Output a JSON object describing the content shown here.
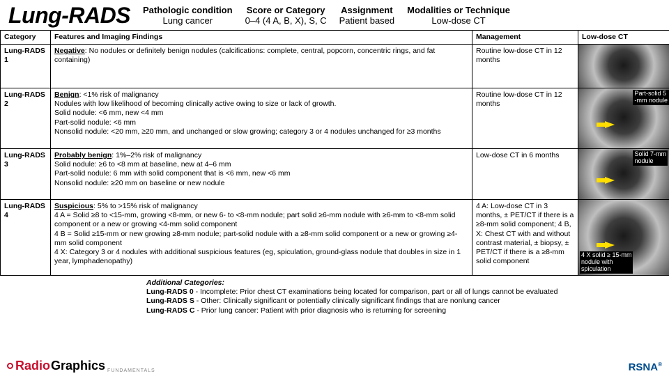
{
  "title": "Lung-RADS",
  "meta": [
    {
      "label": "Pathologic condition",
      "value": "Lung cancer"
    },
    {
      "label": "Score or Category",
      "value": "0–4 (4 A, B, X), S, C"
    },
    {
      "label": "Assignment",
      "value": "Patient based"
    },
    {
      "label": "Modalities or Technique",
      "value": "Low-dose CT"
    }
  ],
  "columns": {
    "category": "Category",
    "features": "Features and Imaging Findings",
    "management": "Management",
    "image": "Low-dose CT"
  },
  "rows": [
    {
      "category": "Lung-RADS 1",
      "featLead": "Negative",
      "featRest": ": No nodules or definitely benign nodules (calcifications: complete, central, popcorn, concentric rings, and fat containing)",
      "management": "Routine low-dose CT in 12 months",
      "annot": null
    },
    {
      "category": "Lung-RADS 2",
      "featLead": "Benign",
      "featRest": ": <1% risk of malignancy\nNodules with low likelihood of becoming clinically active owing to size or lack of growth.\nSolid nodule: <6 mm, new <4 mm\nPart-solid nodule: <6 mm\nNonsolid nodule: <20 mm, ≥20 mm, and unchanged or slow growing; category 3 or 4 nodules unchanged for ≥3 months",
      "management": "Routine low-dose CT in 12 months",
      "annot": "Part-solid 5\n-mm nodule"
    },
    {
      "category": "Lung-RADS 3",
      "featLead": "Probably benign",
      "featRest": ": 1%–2% risk of malignancy\nSolid nodule: ≥6 to <8 mm at baseline, new at 4–6 mm\nPart-solid nodule: 6 mm with solid component that is <6 mm, new <6 mm\nNonsolid nodule: ≥20 mm on baseline or new nodule",
      "management": "Low-dose CT in 6 months",
      "annot": "Solid 7-mm\nnodule"
    },
    {
      "category": "Lung-RADS 4",
      "featLead": "Suspicious",
      "featRest": ": 5% to >15% risk of malignancy\n4 A = Solid ≥8 to <15-mm, growing <8-mm, or new 6- to <8-mm nodule; part solid ≥6-mm nodule with ≥6-mm to <8-mm solid component or a new or growing <4-mm solid component\n4 B = Solid ≥15-mm or new growing ≥8-mm nodule; part-solid nodule with a ≥8-mm solid component or a new or growing ≥4-mm solid component\n4 X: Category 3 or 4 nodules with additional suspicious features (eg, spiculation, ground-glass nodule that doubles in size in 1 year, lymphadenopathy)",
      "management": "4 A: Low-dose CT in 3 months, ± PET/CT if there is a ≥8-mm solid component; 4 B, X: Chest CT with and without contrast material, ± biopsy, ± PET/CT if there is a ≥8-mm solid component",
      "annot": "4 X solid ≥ 15-mm\nnodule with\nspiculation"
    }
  ],
  "additional": {
    "heading": "Additional Categories:",
    "lines": [
      {
        "lead": "Lung-RADS 0",
        "rest": " - Incomplete: Prior chest CT examinations being located for comparison, part or all of lungs cannot be evaluated"
      },
      {
        "lead": "Lung-RADS S",
        "rest": " - Other: Clinically significant or potentially clinically significant findings that are nonlung cancer"
      },
      {
        "lead": "Lung-RADS C",
        "rest": " - Prior lung cancer: Patient with prior diagnosis who is returning for screening"
      }
    ]
  },
  "logos": {
    "radiographics_a": "Radio",
    "radiographics_b": "Graphics",
    "radiographics_sub": "FUNDAMENTALS",
    "rsna": "RSNA"
  },
  "style": {
    "accent_red": "#c8102e",
    "accent_blue": "#004b8d",
    "arrow_color": "#ffde00",
    "border_color": "#000000",
    "background": "#ffffff"
  }
}
